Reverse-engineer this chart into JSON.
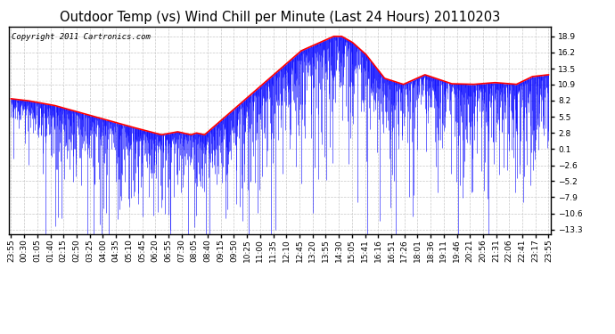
{
  "title": "Outdoor Temp (vs) Wind Chill per Minute (Last 24 Hours) 20110203",
  "copyright_text": "Copyright 2011 Cartronics.com",
  "background_color": "#ffffff",
  "plot_bg_color": "#ffffff",
  "grid_color": "#c8c8c8",
  "y_ticks": [
    -13.3,
    -10.6,
    -7.9,
    -5.2,
    -2.6,
    0.1,
    2.8,
    5.5,
    8.2,
    10.9,
    13.5,
    16.2,
    18.9
  ],
  "ylim": [
    -14.0,
    20.5
  ],
  "x_labels": [
    "23:55",
    "00:30",
    "01:05",
    "01:40",
    "02:15",
    "02:50",
    "03:25",
    "04:00",
    "04:35",
    "05:10",
    "05:45",
    "06:20",
    "06:55",
    "07:30",
    "08:05",
    "08:40",
    "09:15",
    "09:50",
    "10:25",
    "11:00",
    "11:35",
    "12:10",
    "12:45",
    "13:20",
    "13:55",
    "14:30",
    "15:05",
    "15:41",
    "16:16",
    "16:51",
    "17:26",
    "18:01",
    "18:36",
    "19:11",
    "19:46",
    "20:21",
    "20:56",
    "21:31",
    "22:06",
    "22:41",
    "23:17",
    "23:55"
  ],
  "blue_line_color": "#0000ff",
  "red_line_color": "#ff0000",
  "title_fontsize": 10.5,
  "tick_fontsize": 6.5,
  "copyright_fontsize": 6.5
}
